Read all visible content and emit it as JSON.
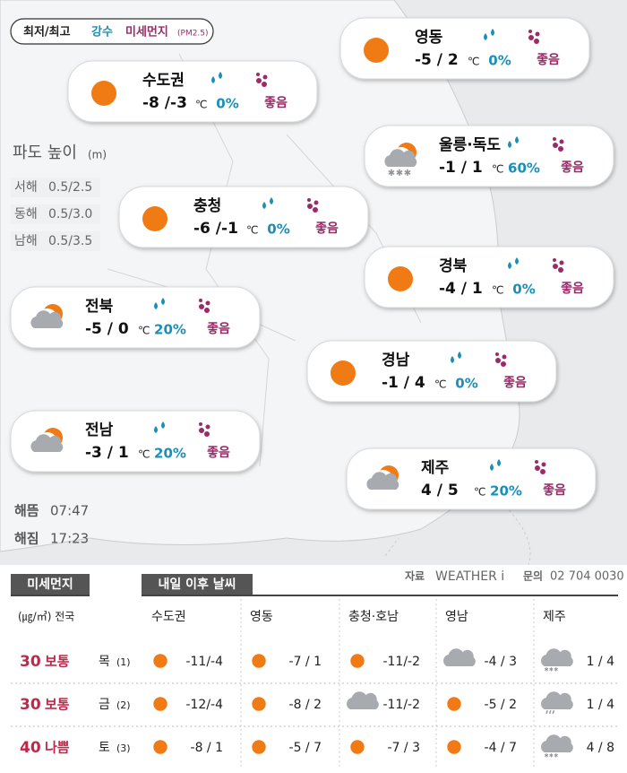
{
  "legend": {
    "min_max": "최저/최고",
    "precip": "강수",
    "dust": "미세먼지",
    "dust_unit": "(PM2.5)"
  },
  "regions": [
    {
      "name": "영동",
      "icon": "sun",
      "temp": "-5 / 2",
      "unit": "℃",
      "precip": "0%",
      "dust": "좋음"
    },
    {
      "name": "수도권",
      "icon": "sun",
      "temp": "-8 /-3",
      "unit": "℃",
      "precip": "0%",
      "dust": "좋음"
    },
    {
      "name": "울릉·독도",
      "icon": "snow-cloud",
      "temp": "-1 / 1",
      "unit": "℃",
      "precip": "60%",
      "dust": "좋음"
    },
    {
      "name": "충청",
      "icon": "sun",
      "temp": "-6 /-1",
      "unit": "℃",
      "precip": "0%",
      "dust": "좋음"
    },
    {
      "name": "경북",
      "icon": "sun",
      "temp": "-4 / 1",
      "unit": "℃",
      "precip": "0%",
      "dust": "좋음"
    },
    {
      "name": "전북",
      "icon": "cloud-sun",
      "temp": "-5 / 0",
      "unit": "℃",
      "precip": "20%",
      "dust": "좋음"
    },
    {
      "name": "경남",
      "icon": "sun",
      "temp": "-1 / 4",
      "unit": "℃",
      "precip": "0%",
      "dust": "좋음"
    },
    {
      "name": "전남",
      "icon": "cloud-sun",
      "temp": "-3 / 1",
      "unit": "℃",
      "precip": "20%",
      "dust": "좋음"
    },
    {
      "name": "제주",
      "icon": "cloud-sun",
      "temp": "4 / 5",
      "unit": "℃",
      "precip": "20%",
      "dust": "좋음"
    }
  ],
  "wave": {
    "title": "파도 높이",
    "unit": "(m)",
    "rows": [
      {
        "sea": "서해",
        "height": "0.5/2.5"
      },
      {
        "sea": "동해",
        "height": "0.5/3.0"
      },
      {
        "sea": "남해",
        "height": "0.5/3.5"
      }
    ]
  },
  "sun": {
    "rise_label": "해뜸",
    "rise": "07:47",
    "set_label": "해짐",
    "set": "17:23"
  },
  "source": {
    "label": "자료",
    "name": "WEATHER i",
    "contact_label": "문의",
    "phone": "02 704 0030"
  },
  "table": {
    "dust_header": "미세먼지",
    "dust_unit": "(㎍/㎥) 전국",
    "forecast_header": "내일 이후 날씨",
    "columns": [
      "수도권",
      "영동",
      "충청·호남",
      "영남",
      "제주"
    ],
    "rows": [
      {
        "dust_value": 30,
        "dust_grade": "보통",
        "day": "목",
        "day_index": "(1)",
        "cells": [
          {
            "icon": "sun",
            "temp": "-11/-4"
          },
          {
            "icon": "sun",
            "temp": "-7 / 1"
          },
          {
            "icon": "sun",
            "temp": "-11/-2"
          },
          {
            "icon": "cloud-sun",
            "temp": "-4 / 3"
          },
          {
            "icon": "snow-sun",
            "temp": "1 / 4"
          }
        ]
      },
      {
        "dust_value": 30,
        "dust_grade": "보통",
        "day": "금",
        "day_index": "(2)",
        "cells": [
          {
            "icon": "sun",
            "temp": "-12/-4"
          },
          {
            "icon": "sun",
            "temp": "-8 / 2"
          },
          {
            "icon": "cloud-sun",
            "temp": "-11/-2"
          },
          {
            "icon": "sun",
            "temp": "-5 / 2"
          },
          {
            "icon": "rain-cloud",
            "temp": "1 / 4"
          }
        ]
      },
      {
        "dust_value": 40,
        "dust_grade": "나쁨",
        "day": "토",
        "day_index": "(3)",
        "cells": [
          {
            "icon": "sun",
            "temp": "-8 / 1"
          },
          {
            "icon": "sun",
            "temp": "-5 / 7"
          },
          {
            "icon": "sun",
            "temp": "-7 / 3"
          },
          {
            "icon": "sun",
            "temp": "-4 / 7"
          },
          {
            "icon": "snow-sun",
            "temp": "4 / 8"
          }
        ]
      }
    ]
  }
}
